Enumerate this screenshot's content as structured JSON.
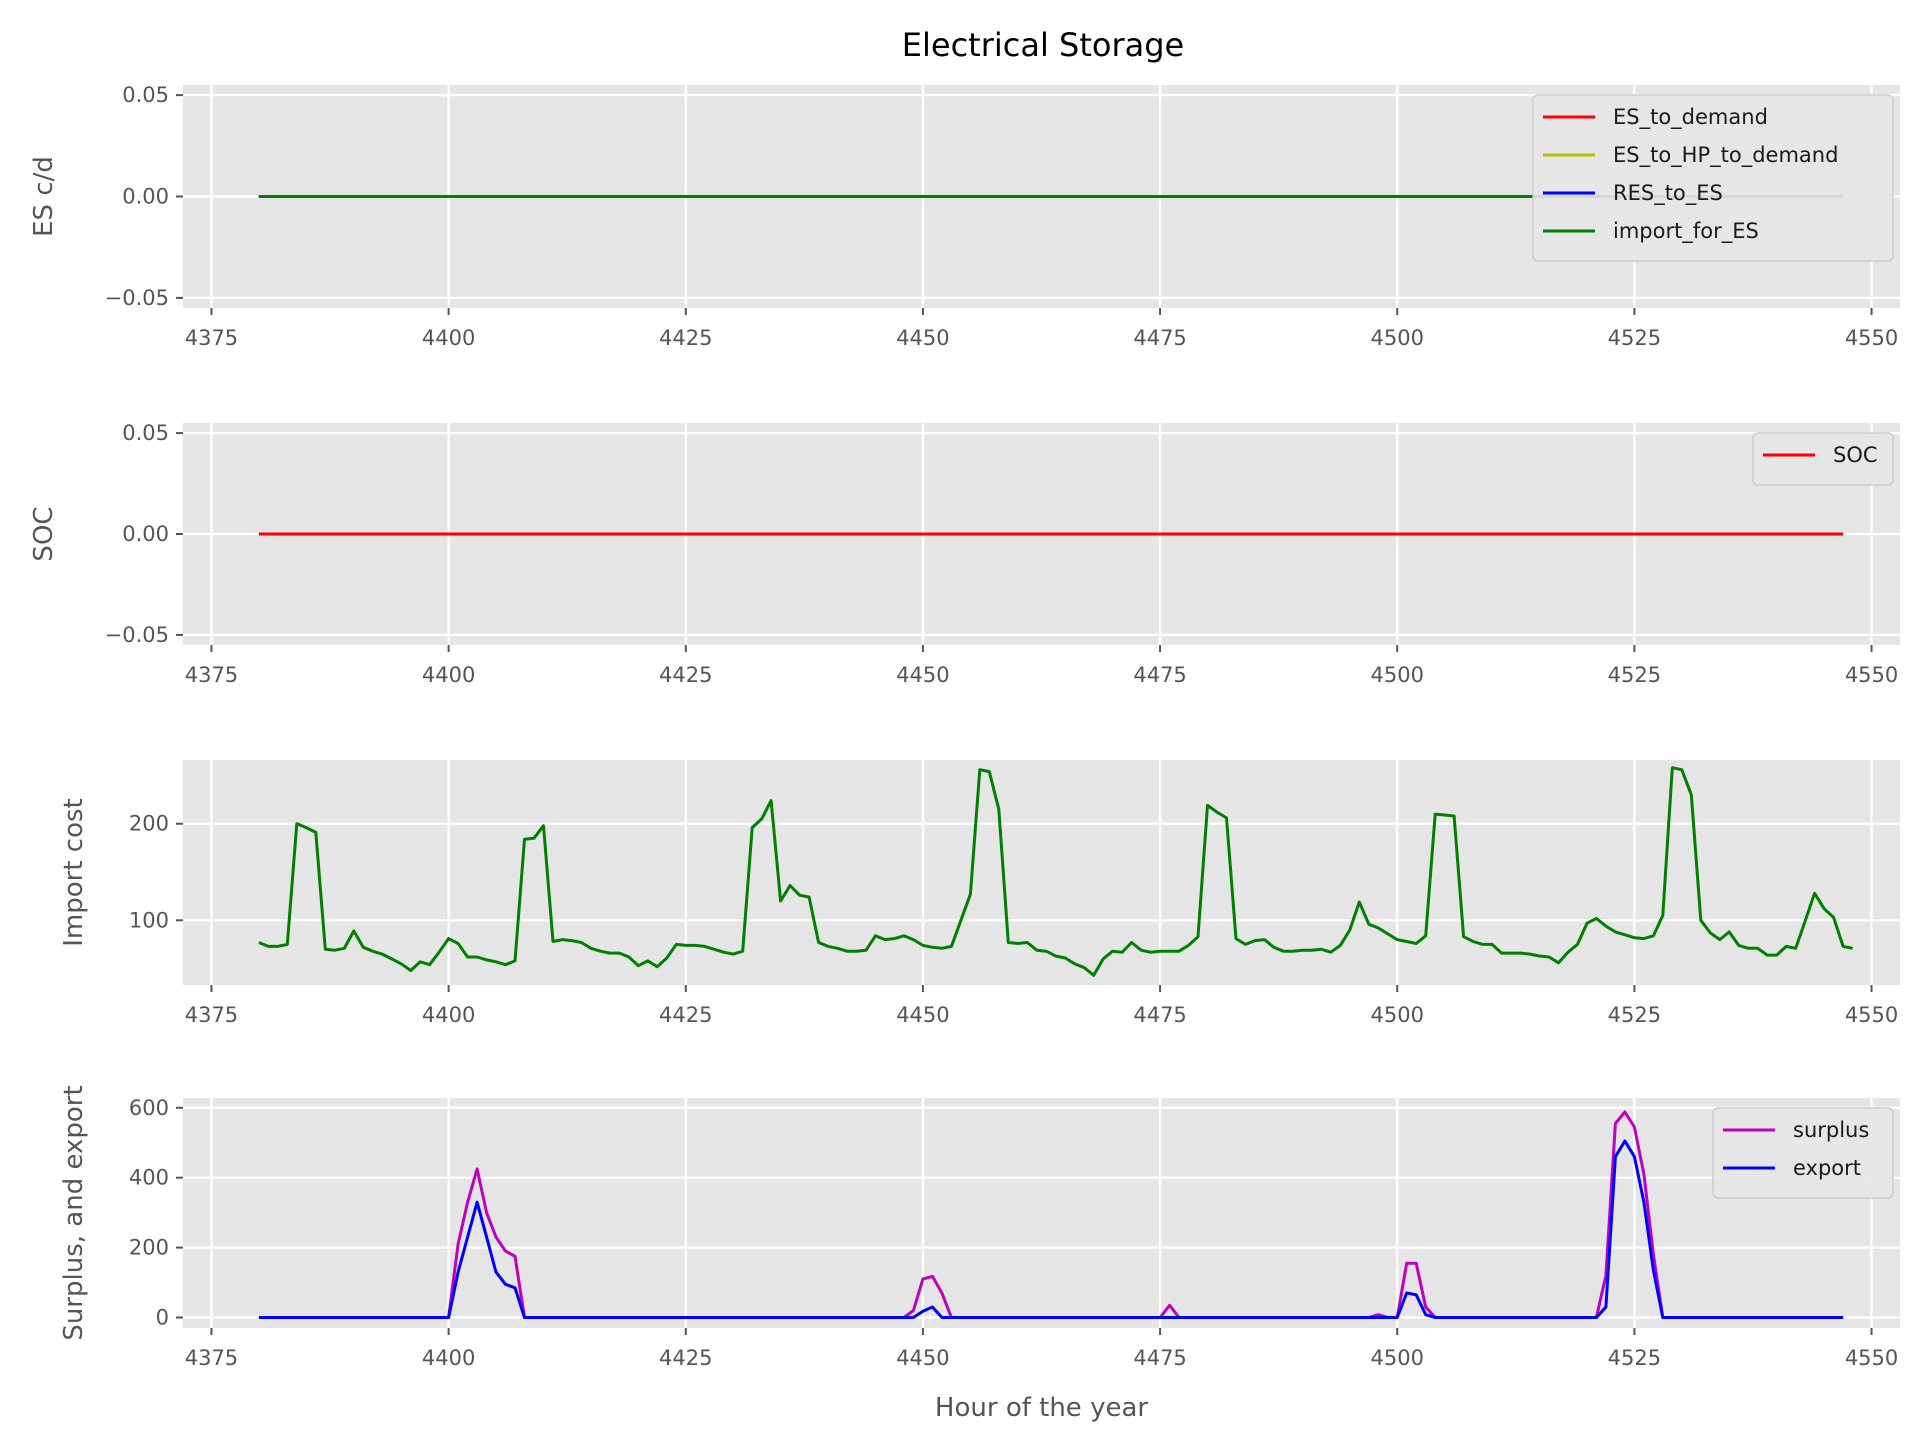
{
  "figure_title": "Electrical Storage",
  "chart_data": [
    {
      "type": "line",
      "title": "Electrical Storage",
      "xlabel": "",
      "ylabel": "ES c/d",
      "xlim": [
        4372,
        4553
      ],
      "ylim": [
        -0.055,
        0.055
      ],
      "xticks": [
        4375,
        4400,
        4425,
        4450,
        4475,
        4500,
        4525,
        4550
      ],
      "xtick_labels": [
        "4375",
        "4400",
        "4425",
        "4450",
        "4475",
        "4500",
        "4525",
        "4550"
      ],
      "yticks": [
        -0.05,
        0.0,
        0.05
      ],
      "ytick_labels": [
        "−0.05",
        "0.00",
        "0.05"
      ],
      "grid": true,
      "legend": "top-right",
      "x_start": 4380,
      "x_end": 4547,
      "series": [
        {
          "name": "ES_to_demand",
          "color": "#ff0000",
          "constant": 0
        },
        {
          "name": "ES_to_HP_to_demand",
          "color": "#bfbf00",
          "constant": 0
        },
        {
          "name": "RES_to_ES",
          "color": "#0000ff",
          "constant": 0
        },
        {
          "name": "import_for_ES",
          "color": "#008000",
          "constant": 0
        }
      ]
    },
    {
      "type": "line",
      "xlabel": "",
      "ylabel": "SOC",
      "xlim": [
        4372,
        4553
      ],
      "ylim": [
        -0.055,
        0.055
      ],
      "xticks": [
        4375,
        4400,
        4425,
        4450,
        4475,
        4500,
        4525,
        4550
      ],
      "xtick_labels": [
        "4375",
        "4400",
        "4425",
        "4450",
        "4475",
        "4500",
        "4525",
        "4550"
      ],
      "yticks": [
        -0.05,
        0.0,
        0.05
      ],
      "ytick_labels": [
        "−0.05",
        "0.00",
        "0.05"
      ],
      "grid": true,
      "legend": "top-right",
      "x_start": 4380,
      "x_end": 4547,
      "series": [
        {
          "name": "SOC",
          "color": "#ff0000",
          "constant": 0
        }
      ]
    },
    {
      "type": "line",
      "xlabel": "",
      "ylabel": "Import cost",
      "xlim": [
        4372,
        4553
      ],
      "ylim": [
        33,
        266
      ],
      "xticks": [
        4375,
        4400,
        4425,
        4450,
        4475,
        4500,
        4525,
        4550
      ],
      "xtick_labels": [
        "4375",
        "4400",
        "4425",
        "4450",
        "4475",
        "4500",
        "4525",
        "4550"
      ],
      "yticks": [
        100,
        200
      ],
      "ytick_labels": [
        "100",
        "200"
      ],
      "grid": true,
      "legend": "none",
      "x_start": 4380,
      "series": [
        {
          "color": "#008000",
          "values": [
            77,
            73,
            73,
            75,
            200,
            196,
            191,
            70,
            69,
            71,
            89,
            72,
            68,
            65,
            60,
            55,
            48,
            57,
            54,
            67,
            81,
            76,
            62,
            62,
            59,
            57,
            54,
            58,
            184,
            185,
            198,
            78,
            80,
            79,
            77,
            71,
            68,
            66,
            66,
            62,
            53,
            58,
            52,
            61,
            75,
            74,
            74,
            73,
            70,
            67,
            65,
            68,
            196,
            205,
            224,
            120,
            136,
            126,
            124,
            77,
            73,
            71,
            68,
            68,
            69,
            84,
            80,
            81,
            84,
            80,
            74,
            72,
            71,
            73,
            100,
            127,
            256,
            254,
            215,
            77,
            76,
            77,
            69,
            68,
            63,
            61,
            55,
            51,
            43,
            60,
            68,
            67,
            77,
            69,
            67,
            68,
            68,
            68,
            74,
            83,
            219,
            212,
            206,
            81,
            75,
            79,
            80,
            72,
            68,
            68,
            69,
            69,
            70,
            67,
            74,
            90,
            119,
            96,
            92,
            86,
            80,
            78,
            76,
            84,
            210,
            209,
            208,
            83,
            78,
            75,
            75,
            66,
            66,
            66,
            65,
            63,
            62,
            56,
            67,
            75,
            97,
            102,
            94,
            88,
            85,
            82,
            81,
            84,
            105,
            258,
            256,
            230,
            100,
            87,
            80,
            88,
            74,
            71,
            71,
            64,
            64,
            73,
            71,
            99,
            128,
            112,
            103,
            73,
            71
          ]
        }
      ]
    },
    {
      "type": "line",
      "xlabel": "Hour of the year",
      "ylabel": "Surplus, and export",
      "xlim": [
        4372,
        4553
      ],
      "ylim": [
        -30,
        628
      ],
      "xticks": [
        4375,
        4400,
        4425,
        4450,
        4475,
        4500,
        4525,
        4550
      ],
      "xtick_labels": [
        "4375",
        "4400",
        "4425",
        "4450",
        "4475",
        "4500",
        "4525",
        "4550"
      ],
      "yticks": [
        0,
        200,
        400,
        600
      ],
      "ytick_labels": [
        "0",
        "200",
        "400",
        "600"
      ],
      "grid": true,
      "legend": "top-right",
      "x_start": 4380,
      "x_end": 4547,
      "series": [
        {
          "name": "surplus",
          "color": "#bf00bf",
          "points": [
            [
              4380,
              0
            ],
            [
              4400,
              0
            ],
            [
              4401,
              210
            ],
            [
              4402,
              330
            ],
            [
              4403,
              425
            ],
            [
              4404,
              300
            ],
            [
              4405,
              230
            ],
            [
              4406,
              190
            ],
            [
              4407,
              175
            ],
            [
              4408,
              0
            ],
            [
              4448,
              0
            ],
            [
              4449,
              20
            ],
            [
              4450,
              110
            ],
            [
              4451,
              118
            ],
            [
              4452,
              70
            ],
            [
              4453,
              0
            ],
            [
              4475,
              0
            ],
            [
              4476,
              35
            ],
            [
              4477,
              0
            ],
            [
              4497,
              0
            ],
            [
              4498,
              8
            ],
            [
              4499,
              0
            ],
            [
              4500,
              0
            ],
            [
              4501,
              155
            ],
            [
              4502,
              155
            ],
            [
              4503,
              30
            ],
            [
              4504,
              0
            ],
            [
              4521,
              0
            ],
            [
              4522,
              120
            ],
            [
              4523,
              555
            ],
            [
              4524,
              588
            ],
            [
              4525,
              545
            ],
            [
              4526,
              410
            ],
            [
              4527,
              180
            ],
            [
              4528,
              0
            ],
            [
              4547,
              0
            ]
          ]
        },
        {
          "name": "export",
          "color": "#0000ff",
          "points": [
            [
              4380,
              0
            ],
            [
              4400,
              0
            ],
            [
              4401,
              130
            ],
            [
              4402,
              230
            ],
            [
              4403,
              330
            ],
            [
              4404,
              230
            ],
            [
              4405,
              130
            ],
            [
              4406,
              95
            ],
            [
              4407,
              85
            ],
            [
              4408,
              0
            ],
            [
              4449,
              0
            ],
            [
              4450,
              18
            ],
            [
              4451,
              30
            ],
            [
              4452,
              0
            ],
            [
              4500,
              0
            ],
            [
              4501,
              70
            ],
            [
              4502,
              65
            ],
            [
              4503,
              8
            ],
            [
              4504,
              0
            ],
            [
              4521,
              0
            ],
            [
              4522,
              30
            ],
            [
              4523,
              460
            ],
            [
              4524,
              505
            ],
            [
              4525,
              460
            ],
            [
              4526,
              330
            ],
            [
              4527,
              135
            ],
            [
              4528,
              0
            ],
            [
              4547,
              0
            ]
          ]
        }
      ]
    }
  ]
}
